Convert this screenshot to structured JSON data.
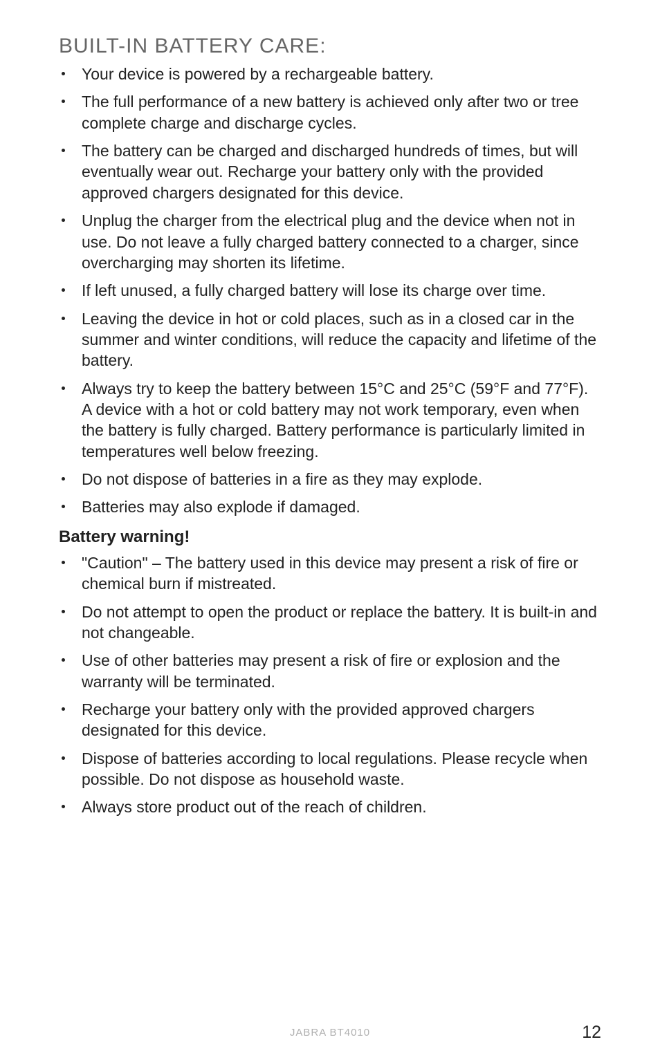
{
  "heading": "BUILT-IN BATTERY CARE:",
  "list1": [
    "Your device is powered by a rechargeable battery.",
    "The full performance of a new battery is achieved only after two or tree complete charge and discharge cycles.",
    "The battery can be charged and discharged hundreds of times, but will eventually wear out. Recharge your battery only with the provided approved chargers designated for this device.",
    "Unplug the charger from the electrical plug and the device when not in use. Do not leave a fully charged battery connected to a charger, since overcharging may shorten its lifetime.",
    "If left unused, a fully charged battery will lose its charge over time.",
    "Leaving the device in hot or cold places, such as in a closed car in the summer and winter conditions, will reduce the capacity and lifetime of the battery.",
    "Always try to keep the battery between 15°C and 25°C (59°F and 77°F). A device with a hot or cold battery may not work temporary, even when the battery is fully charged. Battery performance is particularly limited in temperatures well below freezing.",
    "Do not dispose of batteries in a fire as they may explode.",
    "Batteries may also explode if damaged."
  ],
  "subheading": "Battery warning!",
  "list2": [
    "\"Caution\" – The battery used in this device may present a risk of fire or chemical burn if mistreated.",
    "Do not attempt to open the product or replace the battery. It is built-in and not changeable.",
    "Use of other batteries may present a risk of fire or explosion and the warranty will be terminated.",
    "Recharge your battery only with the provided approved chargers designated for this device.",
    "Dispose of batteries according to local regulations. Please recycle when possible. Do not dispose as household waste.",
    "Always store product out of the reach of children."
  ],
  "footer_brand": "JABRA BT4010",
  "page_num": "12"
}
